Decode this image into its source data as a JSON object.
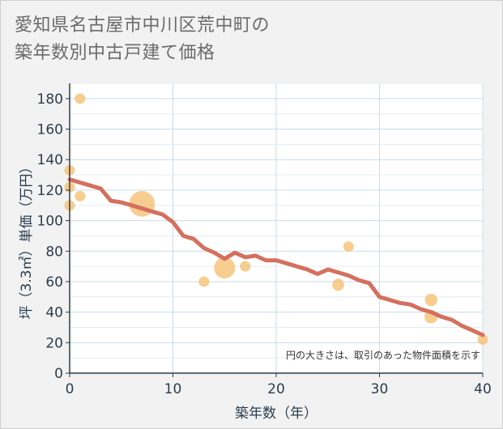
{
  "title": {
    "line1": "愛知県名古屋市中川区荒中町の",
    "line2": "築年数別中古戸建て価格"
  },
  "colors": {
    "bubble": "#f6c47c",
    "trend": "#d4705e",
    "grid": "#c9dbe6",
    "axis": "#2b3d4f"
  },
  "chart_data": {
    "type": "scatter",
    "title": "愛知県名古屋市中川区荒中町の築年数別中古戸建て価格",
    "xlabel": "築年数（年）",
    "ylabel": "坪（3.3㎡）単価（万円）",
    "xlim": [
      0,
      40
    ],
    "ylim": [
      0,
      190
    ],
    "xticks": [
      0,
      10,
      20,
      30,
      40
    ],
    "yticks": [
      0,
      20,
      40,
      60,
      80,
      100,
      120,
      140,
      160,
      180
    ],
    "note": "円の大きさは、取引のあった物件面積を示す",
    "points": [
      {
        "x": 0,
        "y": 133,
        "size": 1
      },
      {
        "x": 0,
        "y": 122,
        "size": 1
      },
      {
        "x": 0,
        "y": 110,
        "size": 1
      },
      {
        "x": 1,
        "y": 180,
        "size": 1
      },
      {
        "x": 1,
        "y": 116,
        "size": 1
      },
      {
        "x": 7,
        "y": 111,
        "size": 6
      },
      {
        "x": 13,
        "y": 60,
        "size": 1
      },
      {
        "x": 15,
        "y": 69,
        "size": 4
      },
      {
        "x": 17,
        "y": 70,
        "size": 1
      },
      {
        "x": 26,
        "y": 58,
        "size": 1.3
      },
      {
        "x": 27,
        "y": 83,
        "size": 1
      },
      {
        "x": 35,
        "y": 48,
        "size": 1.4
      },
      {
        "x": 35,
        "y": 37,
        "size": 1.6
      },
      {
        "x": 40,
        "y": 22,
        "size": 1
      }
    ],
    "trend": {
      "x": [
        0,
        1,
        2,
        3,
        4,
        5,
        6,
        7,
        8,
        9,
        10,
        11,
        12,
        13,
        14,
        15,
        16,
        17,
        18,
        19,
        20,
        21,
        22,
        23,
        24,
        25,
        26,
        27,
        28,
        29,
        30,
        31,
        32,
        33,
        34,
        35,
        36,
        37,
        38,
        39,
        40
      ],
      "y": [
        127,
        125,
        123,
        121,
        113,
        112,
        110,
        108,
        106,
        104,
        99,
        90,
        88,
        82,
        79,
        75,
        79,
        76,
        77,
        74,
        74,
        72,
        70,
        68,
        65,
        68,
        66,
        64,
        61,
        59,
        50,
        48,
        46,
        45,
        42,
        40,
        37,
        35,
        31,
        28,
        25
      ]
    }
  }
}
